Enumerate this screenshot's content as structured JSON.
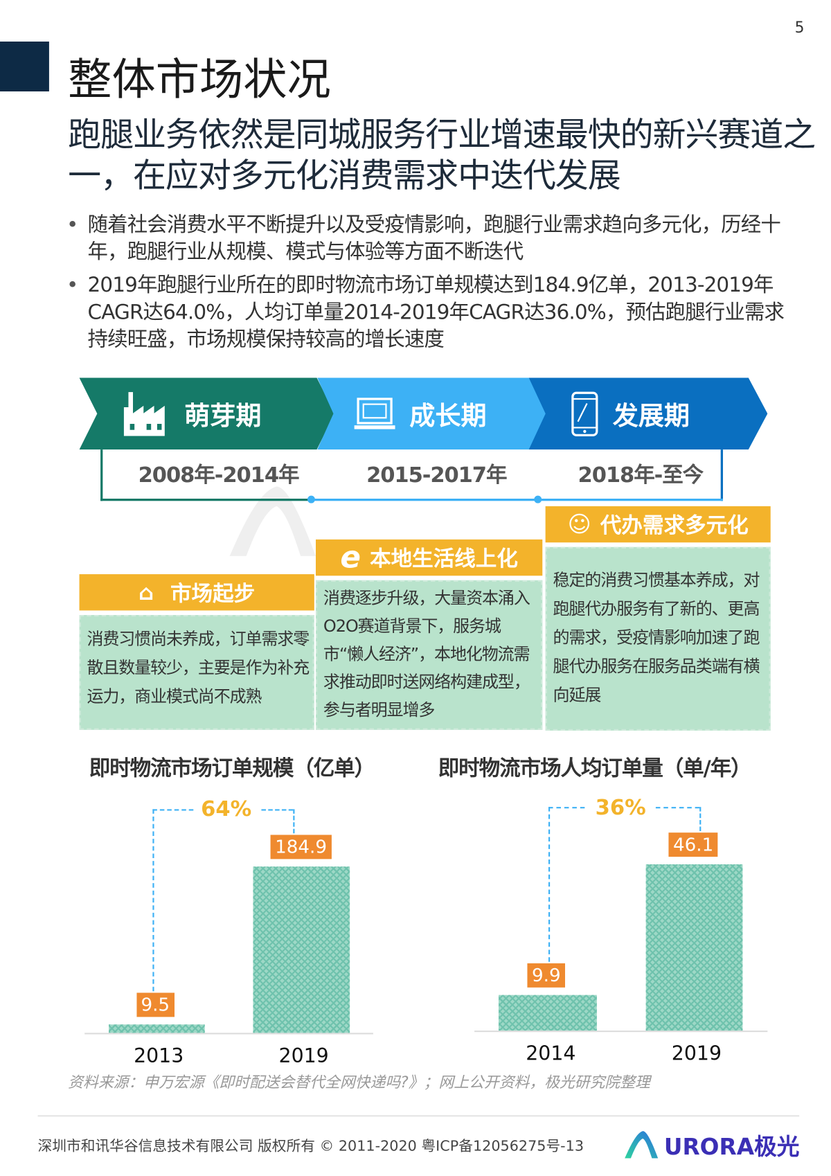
{
  "page_number": "5",
  "title": "整体市场状况",
  "subtitle": "跑腿业务依然是同城服务行业增速最快的新兴赛道之一，在应对多元化消费需求中迭代发展",
  "bullets": [
    "随着社会消费水平不断提升以及受疫情影响，跑腿行业需求趋向多元化，历经十年，跑腿行业从规模、模式与体验等方面不断迭代",
    "2019年跑腿行业所在的即时物流市场订单规模达到184.9亿单，2013-2019年CAGR达64.0%，人均订单量2014-2019年CAGR达36.0%，预估跑腿行业需求持续旺盛，市场规模保持较高的增长速度"
  ],
  "timeline": [
    {
      "stage": "萌芽期",
      "period": "2008年-2014年",
      "icon": "factory-icon",
      "color": "#157a68"
    },
    {
      "stage": "成长期",
      "period": "2015-2017年",
      "icon": "laptop-icon",
      "color": "#3db1f5"
    },
    {
      "stage": "发展期",
      "period": "2018年-至今",
      "icon": "smartphone-icon",
      "color": "#0a6fc0"
    }
  ],
  "watermark": "URORA极光",
  "cards": [
    {
      "title": "市场起步",
      "icon": "building-icon",
      "text": "消费习惯尚未养成，订单需求零散且数量较少，主要是作为补充运力，商业模式尚不成熟"
    },
    {
      "title": "本地生活线上化",
      "icon": "internet-explorer-icon",
      "text": "消费逐步升级，大量资本涌入O2O赛道背景下，服务城市“懒人经济”，本地化物流需求推动即时送网络构建成型，参与者明显增多"
    },
    {
      "title": "代办需求多元化",
      "icon": "head-gears-icon",
      "text": "稳定的消费习惯基本养成，对跑腿代办服务有了新的、更高的需求，受疫情影响加速了跑腿代办服务在服务品类端有横向延展"
    }
  ],
  "chart_data": [
    {
      "type": "bar",
      "title": "即时物流市场订单规模（亿单）",
      "categories": [
        "2013",
        "2019"
      ],
      "values": [
        9.5,
        184.9
      ],
      "value_labels": [
        "9.5",
        "184.9"
      ],
      "annotation": "64%",
      "bar_color": "#9dd8c6",
      "label_color": "#ef8a2f"
    },
    {
      "type": "bar",
      "title": "即时物流市场人均订单量（单/年）",
      "categories": [
        "2014",
        "2019"
      ],
      "values": [
        9.9,
        46.1
      ],
      "value_labels": [
        "9.9",
        "46.1"
      ],
      "annotation": "36%",
      "bar_color": "#9dd8c6",
      "label_color": "#ef8a2f"
    }
  ],
  "source": "资料来源：申万宏源《即时配送会替代全网快递吗?》；网上公开资料，极光研究院整理",
  "footer": {
    "copyright": "深圳市和讯华谷信息技术有限公司 版权所有 © 2011-2020 粤ICP备12056275号-13",
    "logo_text": "URORA极光"
  }
}
